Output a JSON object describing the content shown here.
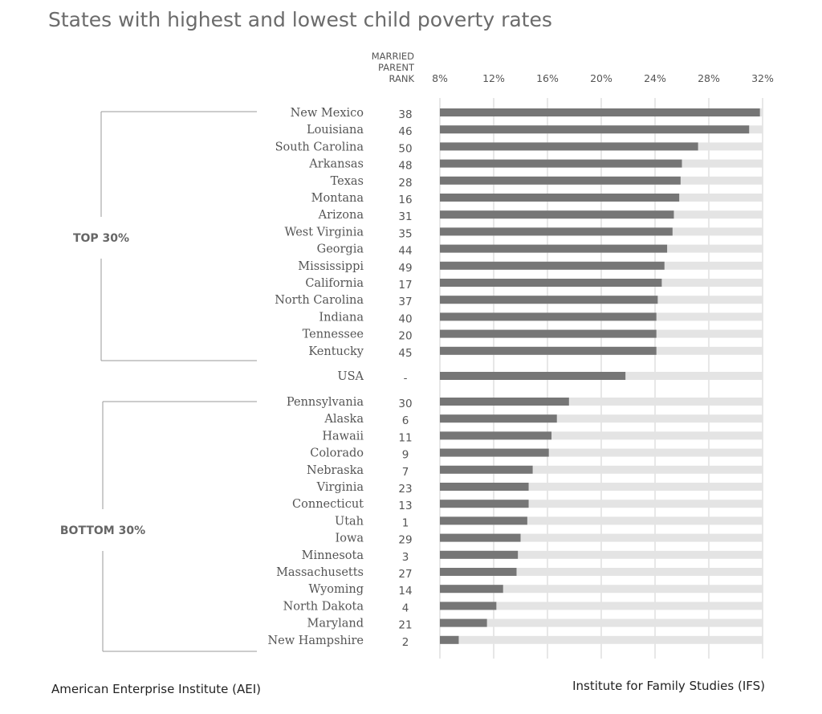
{
  "chart_data": {
    "type": "bar",
    "orientation": "horizontal",
    "title": "States with highest and lowest child poverty rates",
    "rank_header": [
      "MARRIED",
      "PARENT",
      "RANK"
    ],
    "x_ticks": [
      "8%",
      "12%",
      "16%",
      "20%",
      "24%",
      "28%",
      "32%"
    ],
    "x_tick_values": [
      8,
      12,
      16,
      20,
      24,
      28,
      32
    ],
    "xlim": [
      8,
      32
    ],
    "grid": true,
    "colors": {
      "bar": "#767676",
      "track": "#e4e4e4",
      "grid": "#cfcfcf",
      "bracket": "#999999"
    },
    "groups": [
      {
        "label": "TOP 30%",
        "rows": [
          {
            "state": "New Mexico",
            "rank": "38",
            "value": 31.8
          },
          {
            "state": "Louisiana",
            "rank": "46",
            "value": 31.0
          },
          {
            "state": "South Carolina",
            "rank": "50",
            "value": 27.2
          },
          {
            "state": "Arkansas",
            "rank": "48",
            "value": 26.0
          },
          {
            "state": "Texas",
            "rank": "28",
            "value": 25.9
          },
          {
            "state": "Montana",
            "rank": "16",
            "value": 25.8
          },
          {
            "state": "Arizona",
            "rank": "31",
            "value": 25.4
          },
          {
            "state": "West Virginia",
            "rank": "35",
            "value": 25.3
          },
          {
            "state": "Georgia",
            "rank": "44",
            "value": 24.9
          },
          {
            "state": "Mississippi",
            "rank": "49",
            "value": 24.7
          },
          {
            "state": "California",
            "rank": "17",
            "value": 24.5
          },
          {
            "state": "North Carolina",
            "rank": "37",
            "value": 24.2
          },
          {
            "state": "Indiana",
            "rank": "40",
            "value": 24.1
          },
          {
            "state": "Tennessee",
            "rank": "20",
            "value": 24.1
          },
          {
            "state": "Kentucky",
            "rank": "45",
            "value": 24.1
          }
        ]
      },
      {
        "label": "",
        "rows": [
          {
            "state": "USA",
            "rank": "-",
            "value": 21.8
          }
        ]
      },
      {
        "label": "BOTTOM 30%",
        "rows": [
          {
            "state": "Pennsylvania",
            "rank": "30",
            "value": 17.6
          },
          {
            "state": "Alaska",
            "rank": "6",
            "value": 16.7
          },
          {
            "state": "Hawaii",
            "rank": "11",
            "value": 16.3
          },
          {
            "state": "Colorado",
            "rank": "9",
            "value": 16.1
          },
          {
            "state": "Nebraska",
            "rank": "7",
            "value": 14.9
          },
          {
            "state": "Virginia",
            "rank": "23",
            "value": 14.6
          },
          {
            "state": "Connecticut",
            "rank": "13",
            "value": 14.6
          },
          {
            "state": "Utah",
            "rank": "1",
            "value": 14.5
          },
          {
            "state": "Iowa",
            "rank": "29",
            "value": 14.0
          },
          {
            "state": "Minnesota",
            "rank": "3",
            "value": 13.8
          },
          {
            "state": "Massachusetts",
            "rank": "27",
            "value": 13.7
          },
          {
            "state": "Wyoming",
            "rank": "14",
            "value": 12.7
          },
          {
            "state": "North Dakota",
            "rank": "4",
            "value": 12.2
          },
          {
            "state": "Maryland",
            "rank": "21",
            "value": 11.5
          },
          {
            "state": "New Hampshire",
            "rank": "2",
            "value": 9.4
          }
        ]
      }
    ]
  },
  "footer": {
    "left": "American Enterprise Institute (AEI)",
    "right": "Institute for Family Studies (IFS)"
  }
}
